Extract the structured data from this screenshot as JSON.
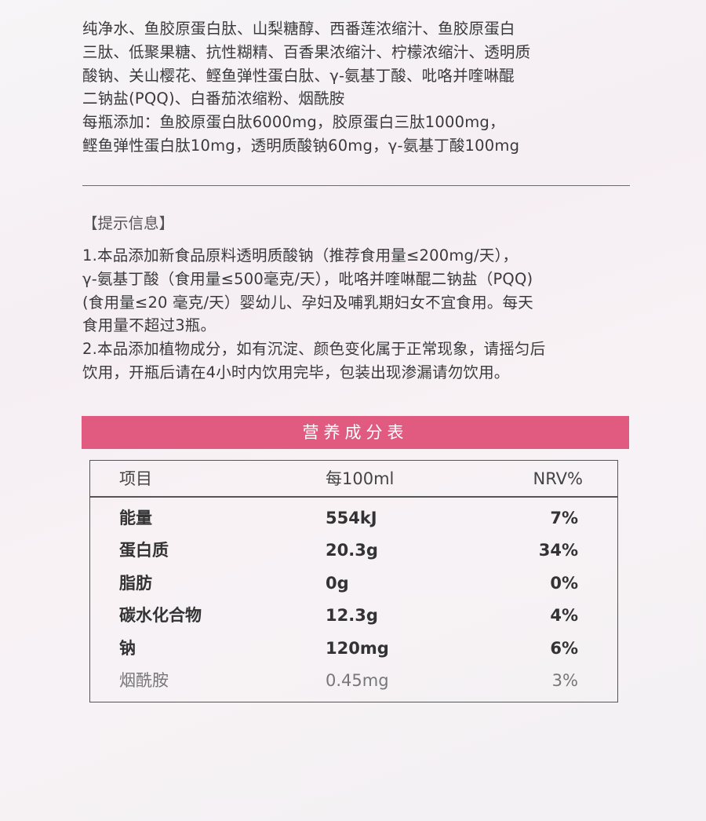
{
  "ingredients": {
    "lines": [
      "纯净水、鱼胶原蛋白肽、山梨糖醇、西番莲浓缩汁、鱼胶原蛋白",
      "三肽、低聚果糖、抗性糊精、百香果浓缩汁、柠檬浓缩汁、透明质",
      "酸钠、关山樱花、鲣鱼弹性蛋白肽、γ-氨基丁酸、吡咯并喹啉醌",
      "二钠盐(PQQ)、白番茄浓缩粉、烟酰胺",
      "每瓶添加：鱼胶原蛋白肽6000mg，胶原蛋白三肽1000mg，",
      "鲣鱼弹性蛋白肽10mg，透明质酸钠60mg，γ-氨基丁酸100mg"
    ]
  },
  "tips": {
    "title": "【提示信息】",
    "lines": [
      "1.本品添加新食品原料透明质酸钠（推荐食用量≤200mg/天），",
      "γ-氨基丁酸（食用量≤500毫克/天），吡咯并喹啉醌二钠盐（PQQ)",
      "(食用量≤20 毫克/天）婴幼儿、孕妇及哺乳期妇女不宜食用。每天",
      "食用量不超过3瓶。",
      "2.本品添加植物成分，如有沉淀、颜色变化属于正常现象，请摇匀后",
      "饮用，开瓶后请在4小时内饮用完毕，包装出现渗漏请勿饮用。"
    ]
  },
  "nutrition": {
    "title": "营养成分表",
    "accent_color": "#e05b7f",
    "headers": [
      "项目",
      "每100ml",
      "NRV%"
    ],
    "rows": [
      [
        "能量",
        "554kJ",
        "7%"
      ],
      [
        "蛋白质",
        "20.3g",
        "34%"
      ],
      [
        "脂肪",
        "0g",
        "0%"
      ],
      [
        "碳水化合物",
        "12.3g",
        "4%"
      ],
      [
        "钠",
        "120mg",
        "6%"
      ],
      [
        "烟酰胺",
        "0.45mg",
        "3%"
      ]
    ]
  }
}
